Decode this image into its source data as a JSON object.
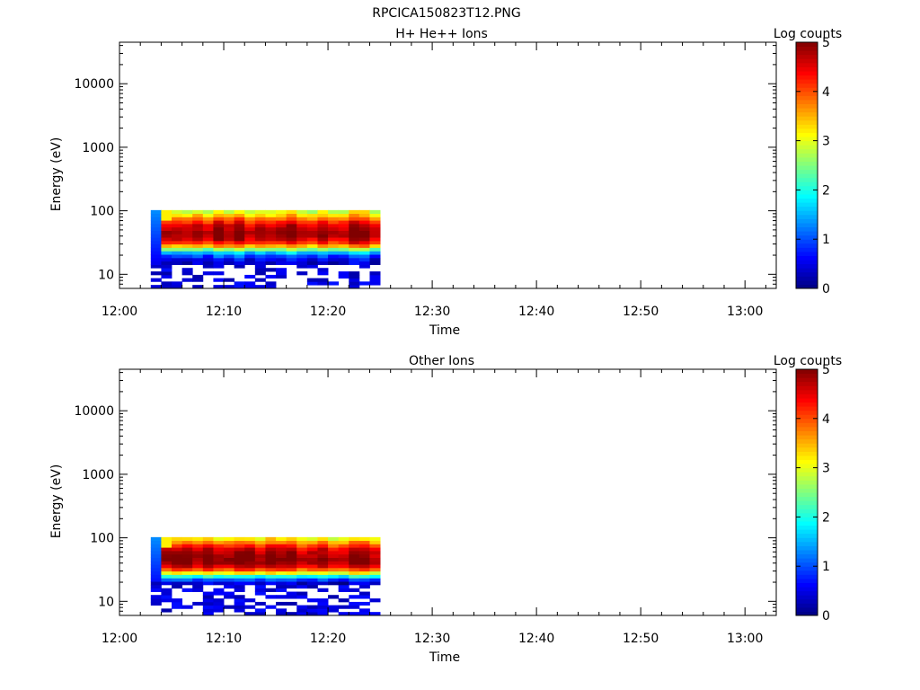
{
  "figure_title": "RPCICA150823T12.PNG",
  "chart_data": [
    {
      "type": "heatmap",
      "title": "H+ He++ Ions",
      "xlabel": "Time",
      "ylabel": "Energy (eV)",
      "y_scale": "log",
      "ylim": [
        6,
        45000
      ],
      "xlim": [
        "12:00",
        "13:03"
      ],
      "x_ticks": [
        "12:00",
        "12:10",
        "12:20",
        "12:30",
        "12:40",
        "12:50",
        "13:00"
      ],
      "y_ticks": [
        "10",
        "100",
        "1000",
        "10000"
      ],
      "colorbar": {
        "label": "Log counts",
        "min": 0,
        "max": 5,
        "ticks": [
          "0",
          "1",
          "2",
          "3",
          "4",
          "5"
        ]
      },
      "time_bins": [
        "12:03",
        "12:04",
        "12:05",
        "12:06",
        "12:07",
        "12:08",
        "12:09",
        "12:10",
        "12:11",
        "12:12",
        "12:13",
        "12:14",
        "12:15",
        "12:16",
        "12:17",
        "12:18",
        "12:19",
        "12:20",
        "12:21",
        "12:22",
        "12:23",
        "12:24"
      ],
      "energy_bins_eV": [
        6.0,
        6.8,
        7.7,
        8.7,
        9.8,
        11.1,
        12.6,
        14.2,
        16.1,
        18.2,
        20.6,
        23.3,
        26.4,
        29.9,
        33.8,
        38.2,
        43.2,
        48.9,
        55.3,
        62.6,
        70.8,
        80.1,
        90.6,
        102.5
      ],
      "rows_high_energy_profile": [
        3.0,
        3.4,
        3.9,
        4.3,
        4.6,
        4.8,
        4.9,
        4.9,
        4.7,
        4.3,
        3.6,
        2.6,
        1.6,
        1.0,
        0.6,
        0.4
      ],
      "sparse_low_energy": true
    },
    {
      "type": "heatmap",
      "title": "Other Ions",
      "xlabel": "Time",
      "ylabel": "Energy (eV)",
      "y_scale": "log",
      "ylim": [
        6,
        45000
      ],
      "xlim": [
        "12:00",
        "13:03"
      ],
      "x_ticks": [
        "12:00",
        "12:10",
        "12:20",
        "12:30",
        "12:40",
        "12:50",
        "13:00"
      ],
      "y_ticks": [
        "10",
        "100",
        "1000",
        "10000"
      ],
      "colorbar": {
        "label": "Log counts",
        "min": 0,
        "max": 5,
        "ticks": [
          "0",
          "1",
          "2",
          "3",
          "4",
          "5"
        ]
      },
      "time_bins": [
        "12:03",
        "12:04",
        "12:05",
        "12:06",
        "12:07",
        "12:08",
        "12:09",
        "12:10",
        "12:11",
        "12:12",
        "12:13",
        "12:14",
        "12:15",
        "12:16",
        "12:17",
        "12:18",
        "12:19",
        "12:20",
        "12:21",
        "12:22",
        "12:23",
        "12:24"
      ],
      "energy_bins_eV": [
        6.0,
        6.8,
        7.7,
        8.7,
        9.8,
        11.1,
        12.6,
        14.2,
        16.1,
        18.2,
        20.6,
        23.3,
        26.4,
        29.9,
        33.8,
        38.2,
        43.2,
        48.9,
        55.3,
        62.6,
        70.8,
        80.1,
        90.6,
        102.5
      ],
      "rows_high_energy_profile": [
        3.2,
        3.7,
        4.2,
        4.6,
        4.8,
        4.9,
        5.0,
        4.9,
        4.6,
        4.0,
        3.1,
        2.0,
        1.0,
        0.4
      ],
      "sparse_low_energy": true
    }
  ]
}
